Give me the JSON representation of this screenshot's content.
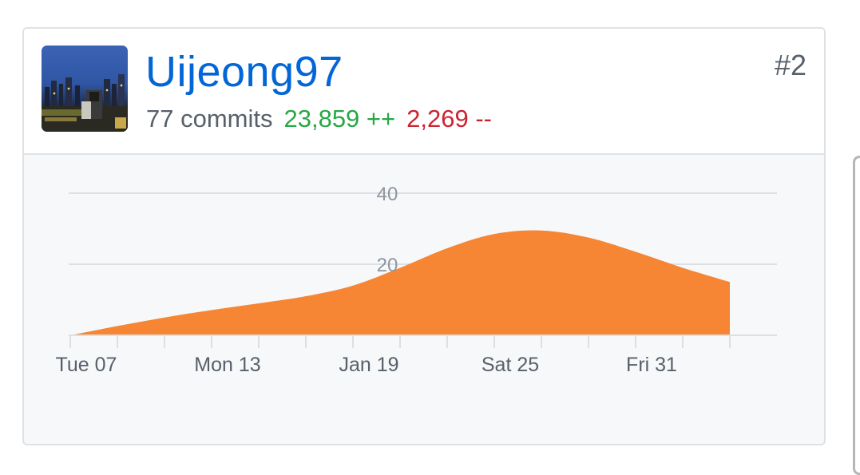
{
  "contributor": {
    "username": "Uijeong97",
    "rank": "#2",
    "commits": "77 commits",
    "additions": "23,859 ++",
    "deletions": "2,269 --",
    "avatar_icon": "city-skyline-photo"
  },
  "colors": {
    "username": "#0366d6",
    "additions": "#28a745",
    "deletions": "#cb2431",
    "area_fill": "#f68634"
  },
  "chart_data": {
    "type": "area",
    "title": "",
    "xlabel": "",
    "ylabel": "",
    "ylim": [
      0,
      40
    ],
    "yticks": [
      20,
      40
    ],
    "x_ticklabels": [
      "Tue 07",
      "Mon 13",
      "Jan 19",
      "Sat 25",
      "Fri 31"
    ],
    "x_labeled_days": [
      0,
      6,
      12,
      18,
      24
    ],
    "grid": true,
    "series": [
      {
        "x": [
          0,
          2,
          4,
          6,
          8,
          10,
          12,
          14,
          16,
          18,
          20,
          22,
          24,
          26,
          28
        ],
        "values": [
          0,
          2.6,
          5.0,
          7.1,
          9.0,
          11.0,
          14.0,
          19.0,
          24.5,
          28.5,
          29.5,
          27.5,
          23.5,
          19.0,
          15.0
        ]
      }
    ]
  }
}
